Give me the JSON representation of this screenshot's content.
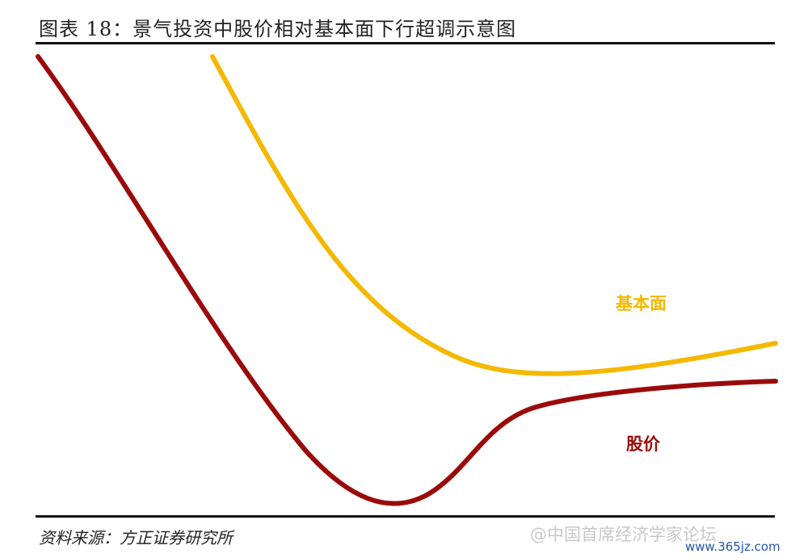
{
  "figure": {
    "title": "图表 18：景气投资中股价相对基本面下行超调示意图",
    "source": "资料来源：方正证券研究所"
  },
  "curves": {
    "fundamentals": {
      "label": "基本面",
      "color": "#F5B800"
    },
    "price": {
      "label": "股价",
      "color": "#9B0A0A"
    }
  },
  "watermark": {
    "text": "@中国首席经济学家论坛",
    "url": "www.365jz.com",
    "url_color": "#2255AA"
  }
}
